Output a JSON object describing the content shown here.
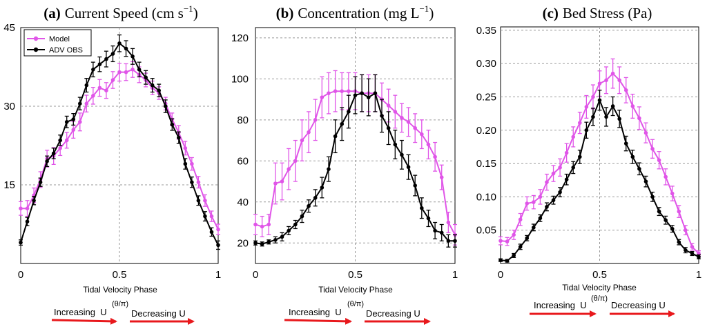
{
  "colors": {
    "model": "#e055e8",
    "obs": "#000000",
    "arrow": "#e8181c",
    "grid": "#9a9a9a"
  },
  "legend": {
    "model": "Model",
    "obs": "ADV OBS"
  },
  "chart_data": [
    {
      "type": "line",
      "panel": "a",
      "title_letter": "(a)",
      "title_text": "Current Speed (cm s",
      "title_sup": "−1",
      "title_close": ")",
      "xlabel": "Tidal Velocity Phase",
      "xlabel_sub": "(θ/π)",
      "arrow_increasing": "Increasing  U",
      "arrow_decreasing": "Decreasing U",
      "xlim": [
        0,
        1
      ],
      "ylim": [
        0,
        45
      ],
      "xticks": [
        0,
        0.5,
        1
      ],
      "xtick_labels": [
        "0",
        "0.5",
        "1"
      ],
      "yticks": [
        15,
        30,
        45
      ],
      "ytick_labels": [
        "15",
        "30",
        "45"
      ],
      "legend_position": "top-left",
      "x": [
        0,
        0.0333,
        0.0667,
        0.1,
        0.1333,
        0.1667,
        0.2,
        0.2333,
        0.2667,
        0.3,
        0.3333,
        0.3667,
        0.4,
        0.4333,
        0.4667,
        0.5,
        0.5333,
        0.5667,
        0.6,
        0.6333,
        0.6667,
        0.7,
        0.7333,
        0.7667,
        0.8,
        0.8333,
        0.8667,
        0.9,
        0.9333,
        0.9667,
        1
      ],
      "series": [
        {
          "name": "Model",
          "values": [
            10.5,
            10.5,
            13,
            16,
            20,
            20.5,
            22,
            23.5,
            25.5,
            27,
            30.5,
            32,
            33.5,
            33,
            35,
            36.5,
            36.5,
            37,
            36,
            35,
            33.5,
            32.5,
            30.5,
            27.5,
            25,
            22,
            19,
            15.5,
            12,
            9,
            6.5
          ],
          "errors": [
            1.3,
            1.5,
            1.4,
            1.5,
            1.6,
            1.6,
            1.4,
            1.5,
            1.6,
            1.7,
            1.6,
            1.6,
            1.6,
            1.5,
            1.6,
            1.7,
            1.6,
            1.5,
            1.5,
            1.3,
            1.3,
            1.2,
            1.2,
            1.2,
            1.3,
            1.3,
            1.2,
            1.1,
            1.1,
            1.0,
            1.0
          ]
        },
        {
          "name": "ADV OBS",
          "values": [
            4,
            8,
            12,
            15.5,
            19.5,
            21,
            23.5,
            27,
            27.5,
            30.5,
            34,
            37,
            38,
            39,
            40,
            42,
            41,
            39.5,
            37,
            35.5,
            34,
            33,
            30,
            26.5,
            24,
            19,
            15.5,
            12,
            9,
            6,
            3.5
          ],
          "errors": [
            0.5,
            0.8,
            0.8,
            0.8,
            1.0,
            1.0,
            1.0,
            1.1,
            1.1,
            1.2,
            1.3,
            1.4,
            1.4,
            1.5,
            1.5,
            1.6,
            1.5,
            1.5,
            1.4,
            1.3,
            1.3,
            1.2,
            1.2,
            1.1,
            1.1,
            1.0,
            1.0,
            0.9,
            0.9,
            0.8,
            0.8
          ]
        }
      ]
    },
    {
      "type": "line",
      "panel": "b",
      "title_letter": "(b)",
      "title_text": "Concentration (mg L",
      "title_sup": "−1",
      "title_close": ")",
      "xlabel": "Tidal Velocity Phase",
      "xlabel_sub": "(θ/π)",
      "arrow_increasing": "Increasing  U",
      "arrow_decreasing": "Decreasing U",
      "xlim": [
        0,
        1
      ],
      "ylim": [
        10,
        125
      ],
      "xticks": [
        0,
        0.5,
        1
      ],
      "xtick_labels": [
        "0",
        "0.5",
        "1"
      ],
      "yticks": [
        20,
        40,
        60,
        80,
        100,
        120
      ],
      "ytick_labels": [
        "20",
        "40",
        "60",
        "80",
        "100",
        "120"
      ],
      "x": [
        0,
        0.0333,
        0.0667,
        0.1,
        0.1333,
        0.1667,
        0.2,
        0.2333,
        0.2667,
        0.3,
        0.3333,
        0.3667,
        0.4,
        0.4333,
        0.4667,
        0.5,
        0.5333,
        0.5667,
        0.6,
        0.6333,
        0.6667,
        0.7,
        0.7333,
        0.7667,
        0.8,
        0.8333,
        0.8667,
        0.9,
        0.9333,
        0.9667,
        1
      ],
      "series": [
        {
          "name": "Model",
          "values": [
            29,
            28,
            29,
            49,
            50,
            56,
            60,
            70,
            74,
            80,
            91,
            93,
            94,
            94,
            94,
            94,
            93,
            93,
            93,
            90,
            87,
            84,
            81,
            79,
            76,
            73,
            68,
            62,
            52,
            30,
            24
          ],
          "errors": [
            5,
            5,
            5,
            10,
            9,
            10,
            10,
            10,
            10,
            10,
            10,
            10,
            10,
            9,
            9,
            9,
            9,
            9,
            9,
            8,
            8,
            8,
            7,
            7,
            7,
            7,
            7,
            7,
            6,
            5,
            5
          ]
        },
        {
          "name": "ADV OBS",
          "values": [
            20,
            19.5,
            20.5,
            21.5,
            23,
            26,
            29,
            33,
            38,
            42,
            47,
            56,
            72,
            78,
            84,
            92,
            93,
            91,
            93,
            82,
            76,
            68,
            63,
            57,
            48,
            37,
            32,
            26,
            25,
            21,
            21
          ],
          "errors": [
            1,
            1,
            1,
            1.5,
            2,
            2,
            2,
            3,
            3,
            4,
            5,
            6,
            8,
            8,
            8,
            9,
            9,
            9,
            9,
            8,
            8,
            7,
            7,
            6,
            5,
            5,
            4,
            4,
            4,
            3,
            3
          ]
        }
      ]
    },
    {
      "type": "line",
      "panel": "c",
      "title_letter": "(c)",
      "title_text": "Bed Stress (Pa)",
      "title_sup": "",
      "title_close": "",
      "xlabel": "Tidal Velocity Phase",
      "xlabel_sub": "(θ/π)",
      "arrow_increasing": "Increasing  U",
      "arrow_decreasing": "Decreasing U",
      "xlim": [
        0,
        1
      ],
      "ylim": [
        0,
        0.355
      ],
      "xticks": [
        0,
        0.5,
        1
      ],
      "xtick_labels": [
        "0",
        "0.5",
        "1"
      ],
      "yticks": [
        0.05,
        0.1,
        0.15,
        0.2,
        0.25,
        0.3,
        0.35
      ],
      "ytick_labels": [
        "0.05",
        "0.10",
        "0.15",
        "0.20",
        "0.25",
        "0.30",
        "0.35"
      ],
      "x": [
        0,
        0.0333,
        0.0667,
        0.1,
        0.1333,
        0.1667,
        0.2,
        0.2333,
        0.2667,
        0.3,
        0.3333,
        0.3667,
        0.4,
        0.4333,
        0.4667,
        0.5,
        0.5333,
        0.5667,
        0.6,
        0.6333,
        0.6667,
        0.7,
        0.7333,
        0.7667,
        0.8,
        0.8333,
        0.8667,
        0.9,
        0.9333,
        0.9667,
        1
      ],
      "series": [
        {
          "name": "Model",
          "values": [
            0.034,
            0.033,
            0.043,
            0.066,
            0.09,
            0.092,
            0.1,
            0.122,
            0.135,
            0.144,
            0.166,
            0.19,
            0.211,
            0.235,
            0.25,
            0.27,
            0.275,
            0.285,
            0.275,
            0.26,
            0.236,
            0.218,
            0.196,
            0.172,
            0.155,
            0.13,
            0.105,
            0.078,
            0.05,
            0.025,
            0.015
          ],
          "errors": [
            0.006,
            0.006,
            0.007,
            0.009,
            0.01,
            0.01,
            0.011,
            0.012,
            0.012,
            0.013,
            0.014,
            0.015,
            0.016,
            0.017,
            0.018,
            0.019,
            0.02,
            0.022,
            0.02,
            0.019,
            0.018,
            0.017,
            0.015,
            0.014,
            0.013,
            0.012,
            0.011,
            0.009,
            0.007,
            0.005,
            0.004
          ]
        },
        {
          "name": "ADV OBS",
          "values": [
            0.005,
            0.004,
            0.012,
            0.025,
            0.038,
            0.054,
            0.068,
            0.085,
            0.095,
            0.107,
            0.126,
            0.144,
            0.16,
            0.2,
            0.22,
            0.245,
            0.22,
            0.236,
            0.217,
            0.18,
            0.16,
            0.142,
            0.123,
            0.1,
            0.078,
            0.065,
            0.052,
            0.032,
            0.02,
            0.015,
            0.01
          ],
          "errors": [
            0.002,
            0.002,
            0.003,
            0.004,
            0.004,
            0.005,
            0.005,
            0.006,
            0.006,
            0.007,
            0.008,
            0.009,
            0.01,
            0.012,
            0.013,
            0.015,
            0.014,
            0.014,
            0.013,
            0.011,
            0.01,
            0.009,
            0.008,
            0.007,
            0.006,
            0.006,
            0.005,
            0.004,
            0.004,
            0.003,
            0.003
          ]
        }
      ]
    }
  ]
}
